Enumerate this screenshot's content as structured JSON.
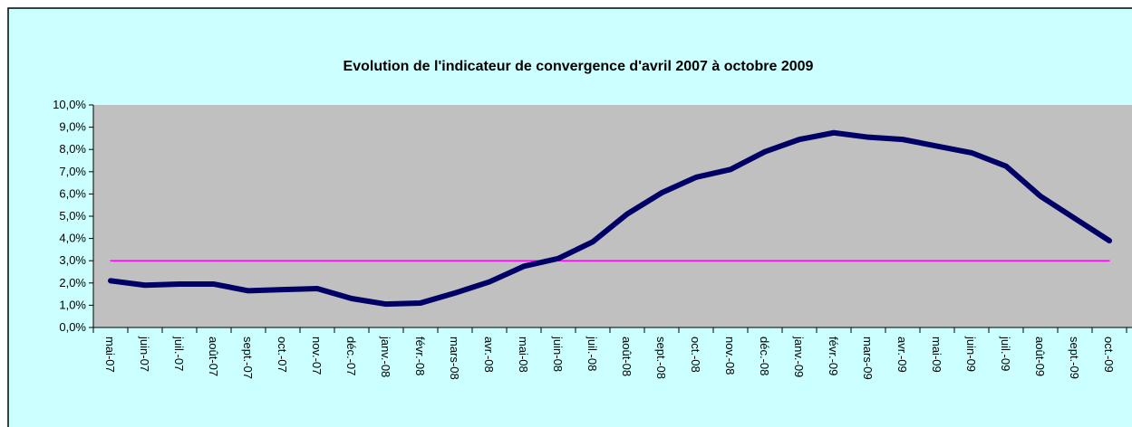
{
  "chart_data": {
    "type": "line",
    "title": "Evolution de l'indicateur de convergence d'avril 2007 à octobre  2009",
    "categories": [
      "mai-07",
      "juin-07",
      "juil.-07",
      "août-07",
      "sept.-07",
      "oct.-07",
      "nov.-07",
      "déc.-07",
      "janv.-08",
      "févr.-08",
      "mars-08",
      "avr.-08",
      "mai-08",
      "juin-08",
      "juil.-08",
      "août-08",
      "sept.-08",
      "oct.-08",
      "nov.-08",
      "déc.-08",
      "janv.-09",
      "févr.-09",
      "mars-09",
      "avr.-09",
      "mai-09",
      "juin-09",
      "juil.-09",
      "août-09",
      "sept.-09",
      "oct.-09"
    ],
    "series": [
      {
        "color": "#000066",
        "values": [
          2.1,
          1.9,
          1.95,
          1.95,
          1.65,
          1.7,
          1.75,
          1.3,
          1.05,
          1.1,
          1.55,
          2.05,
          2.75,
          3.1,
          3.85,
          5.1,
          6.05,
          6.75,
          7.1,
          7.9,
          8.45,
          8.75,
          8.55,
          8.45,
          8.15,
          7.85,
          7.25,
          5.9,
          4.9,
          3.9
        ]
      },
      {
        "color": "#ff00ff",
        "values": [
          3,
          3,
          3,
          3,
          3,
          3,
          3,
          3,
          3,
          3,
          3,
          3,
          3,
          3,
          3,
          3,
          3,
          3,
          3,
          3,
          3,
          3,
          3,
          3,
          3,
          3,
          3,
          3,
          3,
          3
        ]
      }
    ],
    "ylim": [
      0,
      10
    ],
    "yticks": [
      {
        "value": 0,
        "label": "0,0%"
      },
      {
        "value": 1,
        "label": "1,0%"
      },
      {
        "value": 2,
        "label": "2,0%"
      },
      {
        "value": 3,
        "label": "3,0%"
      },
      {
        "value": 4,
        "label": "4,0%"
      },
      {
        "value": 5,
        "label": "5,0%"
      },
      {
        "value": 6,
        "label": "6,0%"
      },
      {
        "value": 7,
        "label": "7,0%"
      },
      {
        "value": 8,
        "label": "8,0%"
      },
      {
        "value": 9,
        "label": "9,0%"
      },
      {
        "value": 10,
        "label": "10,0%"
      }
    ],
    "grid": false
  }
}
